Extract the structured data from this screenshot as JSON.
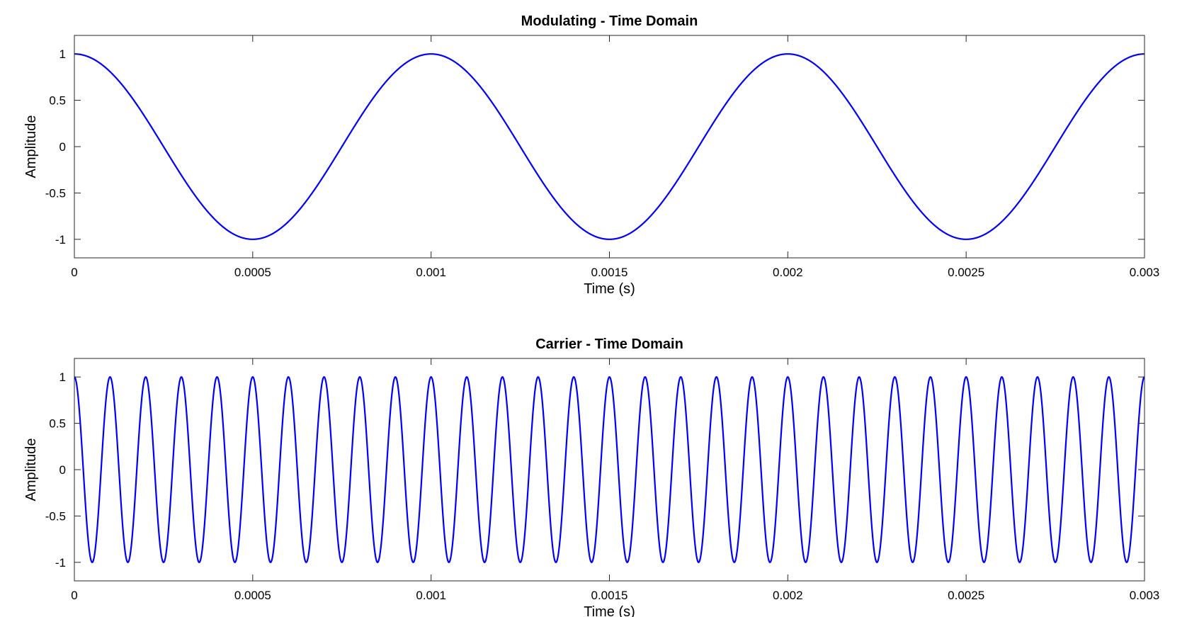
{
  "chart_data": [
    {
      "type": "line",
      "title": "Modulating - Time Domain",
      "xlabel": "Time (s)",
      "ylabel": "Amplitude",
      "xlim": [
        0,
        0.003
      ],
      "ylim": [
        -1.2,
        1.2
      ],
      "xticks": [
        0,
        0.0005,
        0.001,
        0.0015,
        0.002,
        0.0025,
        0.003
      ],
      "xtick_labels": [
        "0",
        "0.0005",
        "0.001",
        "0.0015",
        "0.002",
        "0.0025",
        "0.003"
      ],
      "yticks": [
        1,
        0.5,
        0,
        -0.5,
        -1
      ],
      "ytick_labels": [
        "1",
        "0.5",
        "0",
        "-0.5",
        "-1"
      ],
      "grid": false,
      "series": [
        {
          "function": "cosine",
          "amplitude": 1,
          "frequency_hz": 1000,
          "color": "#0000ff"
        }
      ]
    },
    {
      "type": "line",
      "title": "Carrier - Time Domain",
      "xlabel": "Time (s)",
      "ylabel": "Amplitude",
      "xlim": [
        0,
        0.003
      ],
      "ylim": [
        -1.2,
        1.2
      ],
      "xticks": [
        0,
        0.0005,
        0.001,
        0.0015,
        0.002,
        0.0025,
        0.003
      ],
      "xtick_labels": [
        "0",
        "0.0005",
        "0.001",
        "0.0015",
        "0.002",
        "0.0025",
        "0.003"
      ],
      "yticks": [
        1,
        0.5,
        0,
        -0.5,
        -1
      ],
      "ytick_labels": [
        "1",
        "0.5",
        "0",
        "-0.5",
        "-1"
      ],
      "grid": false,
      "series": [
        {
          "function": "cosine",
          "amplitude": 1,
          "frequency_hz": 10000,
          "color": "#0000ff"
        }
      ]
    }
  ]
}
